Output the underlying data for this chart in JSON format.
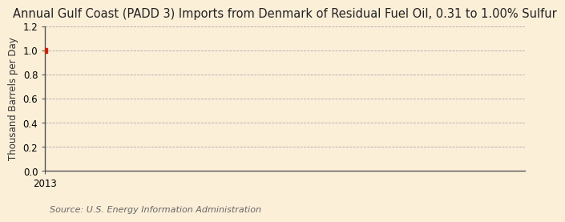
{
  "title": "Annual Gulf Coast (PADD 3) Imports from Denmark of Residual Fuel Oil, 0.31 to 1.00% Sulfur",
  "ylabel": "Thousand Barrels per Day",
  "source": "Source: U.S. Energy Information Administration",
  "x_data": [
    2013
  ],
  "y_data": [
    1.0
  ],
  "point_color": "#cc2200",
  "ylim": [
    0.0,
    1.2
  ],
  "yticks": [
    0.0,
    0.2,
    0.4,
    0.6,
    0.8,
    1.0,
    1.2
  ],
  "xlim_left": 2013.0,
  "xlim_right": 2014.5,
  "background_color": "#fcefd8",
  "grid_color": "#aaaaaa",
  "title_fontsize": 10.5,
  "label_fontsize": 8.5,
  "tick_fontsize": 8.5,
  "source_fontsize": 8
}
